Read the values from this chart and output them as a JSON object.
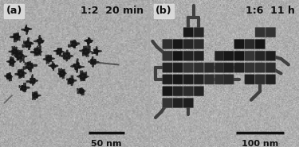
{
  "fig_width": 3.75,
  "fig_height": 1.85,
  "dpi": 100,
  "bg_color": "#a8a8a8",
  "label_a": "(a)",
  "label_b": "(b)",
  "text_a": "1:2  20 min",
  "text_b": "1:6  11 h",
  "scalebar_a": "50 nm",
  "scalebar_b": "100 nm",
  "text_color": "#111111",
  "label_bg": "#e0e0e0",
  "scalebar_color": "#111111",
  "panel_split": 0.495
}
